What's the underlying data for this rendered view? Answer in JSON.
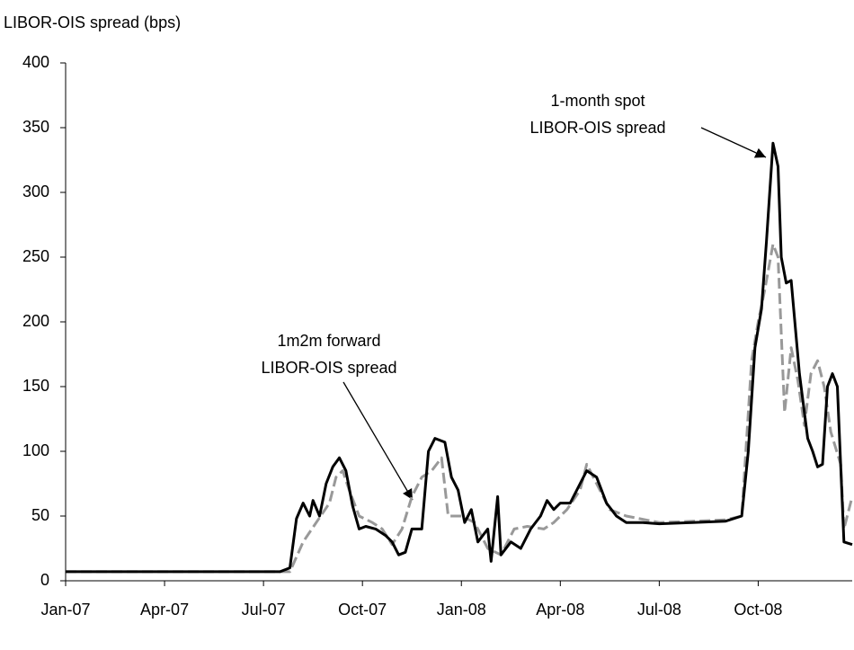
{
  "chart_data": {
    "type": "line",
    "ylabel": "LIBOR-OIS spread (bps)",
    "xlim": [
      0,
      23.85
    ],
    "xticks": [
      {
        "value": 0,
        "label": "Jan-07"
      },
      {
        "value": 3,
        "label": "Apr-07"
      },
      {
        "value": 6,
        "label": "Jul-07"
      },
      {
        "value": 9,
        "label": "Oct-07"
      },
      {
        "value": 12,
        "label": "Jan-08"
      },
      {
        "value": 15,
        "label": "Apr-08"
      },
      {
        "value": 18,
        "label": "Jul-08"
      },
      {
        "value": 21,
        "label": "Oct-08"
      }
    ],
    "ylim": [
      0,
      400
    ],
    "yticks": [
      0,
      50,
      100,
      150,
      200,
      250,
      300,
      350,
      400
    ],
    "annotations": [
      {
        "lines": [
          "1-month spot",
          "LIBOR-OIS spread"
        ]
      },
      {
        "lines": [
          "1m2m forward",
          "LIBOR-OIS spread"
        ]
      }
    ],
    "series": [
      {
        "name": "1-month spot LIBOR-OIS spread",
        "color": "#000000",
        "dash": false,
        "x": [
          0,
          6.5,
          6.8,
          7.0,
          7.2,
          7.4,
          7.5,
          7.7,
          7.9,
          8.1,
          8.3,
          8.5,
          8.7,
          8.9,
          9.1,
          9.4,
          9.7,
          9.9,
          10.1,
          10.3,
          10.5,
          10.8,
          11.0,
          11.2,
          11.5,
          11.7,
          11.9,
          12.1,
          12.3,
          12.5,
          12.8,
          12.9,
          13.1,
          13.2,
          13.5,
          13.8,
          14.1,
          14.4,
          14.6,
          14.8,
          15.0,
          15.3,
          15.6,
          15.8,
          16.1,
          16.4,
          16.7,
          17.0,
          17.5,
          18,
          19,
          20,
          20.5,
          20.7,
          20.9,
          21.1,
          21.25,
          21.45,
          21.6,
          21.7,
          21.85,
          22.0,
          22.25,
          22.5,
          22.65,
          22.8,
          22.95,
          23.1,
          23.25,
          23.4,
          23.6,
          23.85
        ],
        "values": [
          7,
          7,
          10,
          48,
          60,
          50,
          62,
          50,
          75,
          88,
          95,
          85,
          58,
          40,
          42,
          40,
          35,
          30,
          20,
          22,
          40,
          40,
          100,
          110,
          107,
          80,
          70,
          45,
          55,
          30,
          40,
          15,
          65,
          20,
          30,
          25,
          40,
          50,
          62,
          55,
          60,
          60,
          75,
          85,
          80,
          60,
          50,
          45,
          45,
          44,
          45,
          46,
          50,
          100,
          180,
          210,
          262,
          338,
          320,
          250,
          230,
          232,
          160,
          110,
          100,
          88,
          90,
          150,
          160,
          150,
          30,
          28
        ]
      },
      {
        "name": "1m2m forward LIBOR-OIS spread",
        "color": "#999999",
        "dash": true,
        "x": [
          0,
          6.8,
          7.2,
          7.6,
          8.0,
          8.2,
          8.4,
          8.6,
          8.9,
          9.3,
          9.6,
          9.9,
          10.2,
          10.5,
          10.8,
          11.1,
          11.4,
          11.6,
          12.0,
          12.4,
          12.8,
          13.2,
          13.6,
          14.0,
          14.5,
          14.8,
          15.2,
          15.6,
          15.8,
          16.1,
          16.5,
          17.0,
          18,
          19,
          20,
          20.5,
          20.8,
          21.0,
          21.2,
          21.45,
          21.6,
          21.8,
          22.0,
          22.2,
          22.4,
          22.6,
          22.8,
          23.0,
          23.2,
          23.5,
          23.6,
          23.85
        ],
        "values": [
          7,
          7,
          30,
          45,
          60,
          80,
          85,
          70,
          50,
          45,
          40,
          28,
          40,
          65,
          80,
          85,
          95,
          50,
          50,
          45,
          25,
          20,
          40,
          42,
          40,
          45,
          55,
          70,
          90,
          75,
          55,
          50,
          45,
          46,
          47,
          50,
          170,
          200,
          225,
          260,
          250,
          130,
          180,
          155,
          120,
          160,
          170,
          150,
          115,
          90,
          40,
          65
        ]
      }
    ]
  }
}
